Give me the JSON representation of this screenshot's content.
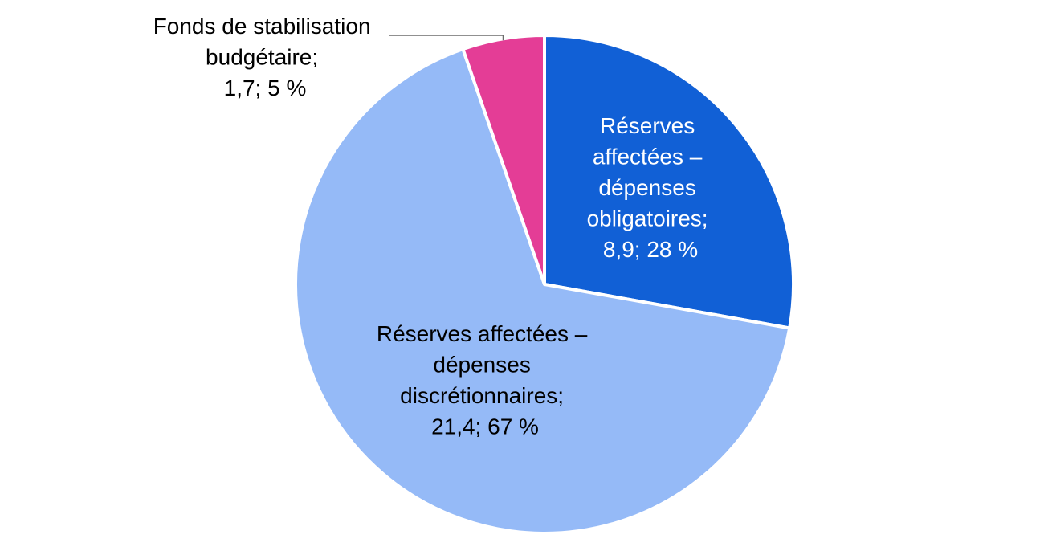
{
  "chart_data": {
    "type": "pie",
    "title": "",
    "start_angle_deg": 0,
    "direction": "clockwise",
    "slices": [
      {
        "name": "Réserves affectées – dépenses obligatoires",
        "value": 8.9,
        "percent": 28,
        "color": "#1160d6",
        "label_color": "#ffffff",
        "label_lines": [
          "Réserves",
          "affectées –",
          "dépenses",
          "obligatoires;",
          "8,9; 28 %"
        ]
      },
      {
        "name": "Réserves affectées – dépenses discrétionnaires",
        "value": 21.4,
        "percent": 67,
        "color": "#95baf7",
        "label_color": "#000000",
        "label_lines": [
          "Réserves affectées –",
          "dépenses",
          "discrétionnaires;",
          "21,4; 67 %"
        ]
      },
      {
        "name": "Fonds de stabilisation budgétaire",
        "value": 1.7,
        "percent": 5,
        "color": "#e43d96",
        "label_color": "#000000",
        "label_lines": [
          "Fonds de stabilisation",
          "budgétaire;",
          "1,7; 5 %"
        ]
      }
    ]
  }
}
